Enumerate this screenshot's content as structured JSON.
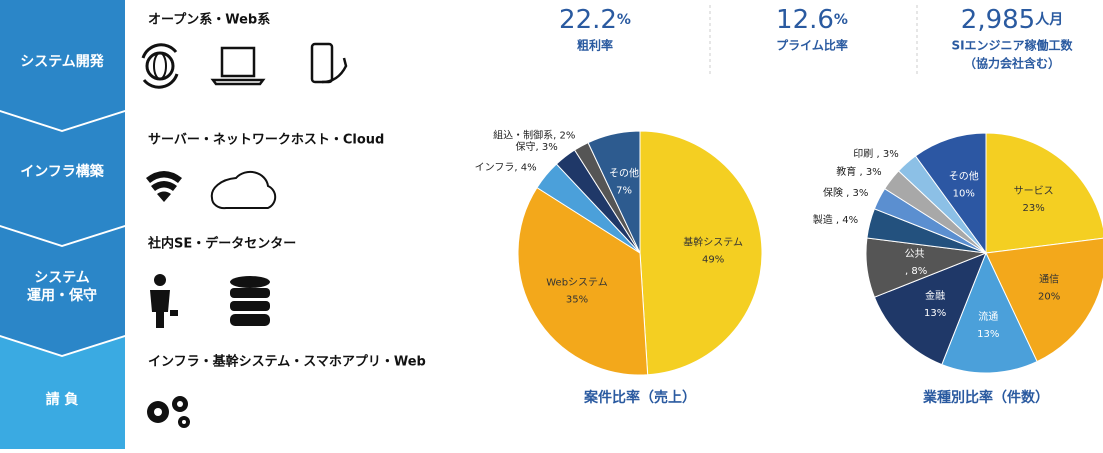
{
  "sidebar": [
    "システム開発",
    "インフラ構築",
    "システム",
    "運用・保守",
    "請 負"
  ],
  "sections": [
    "オープン系・Web系",
    "サーバー・ネットワークホスト・Cloud",
    "社内SE・データセンター",
    "インフラ・基幹システム・スマホアプリ・Web"
  ],
  "stats": [
    {
      "number": "22.2",
      "unit": "%",
      "label": "粗利率"
    },
    {
      "number": "12.6",
      "unit": "%",
      "label": "プライム比率"
    },
    {
      "number": "2,985",
      "unit": "人月",
      "label": "SIエンジニア稼働工数",
      "note": "（協力会社含む）"
    }
  ],
  "chart_data": [
    {
      "type": "pie",
      "title": "案件比率（売上）",
      "categories": [
        "基幹システム",
        "Webシステム",
        "インフラ",
        "保守",
        "組込・制御系",
        "その他"
      ],
      "values": [
        49,
        35,
        4,
        3,
        2,
        7
      ],
      "value_labels": [
        "49%",
        "35%",
        ", 4%",
        ", 3%",
        ", 2%",
        "7%"
      ],
      "colors": [
        "#f4cf22",
        "#f3a81b",
        "#4ba0da",
        "#1f3868",
        "#555555",
        "#2d5b8f"
      ]
    },
    {
      "type": "pie",
      "title": "業種別比率（件数）",
      "categories": [
        "サービス",
        "通信",
        "流通",
        "金融",
        "公共",
        "製造",
        "保険",
        "教育",
        "印刷",
        "その他"
      ],
      "values": [
        23,
        20,
        13,
        13,
        8,
        4,
        3,
        3,
        3,
        10
      ],
      "value_labels": [
        "23%",
        "20%",
        "13%",
        "13%",
        " , 8%",
        " , 4%",
        " , 3%",
        " , 3%",
        " , 3%",
        "10%"
      ],
      "colors": [
        "#f4cf22",
        "#f3a81b",
        "#4ba0da",
        "#1f3868",
        "#555555",
        "#23517e",
        "#5b8fd0",
        "#a8a8a8",
        "#8cc0e6",
        "#2c57a3"
      ]
    }
  ]
}
